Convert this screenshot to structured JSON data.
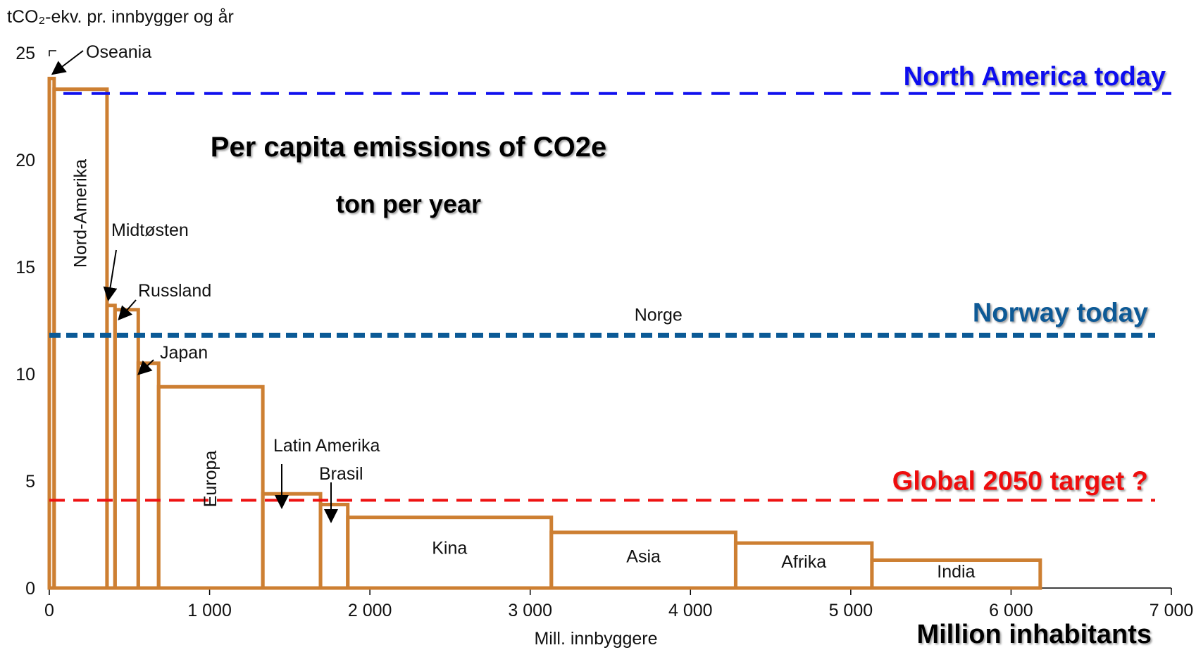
{
  "chart_data": {
    "type": "area",
    "title": "Per capita emissions of CO2e",
    "subtitle": "ton per year",
    "ylabel": "tCO₂-ekv. pr. innbygger og år",
    "xlabel": "Mill. innbyggere",
    "xlabel_en": "Million inhabitants",
    "xlim": [
      0,
      7000
    ],
    "ylim": [
      0,
      25
    ],
    "xticks": [
      0,
      1000,
      2000,
      3000,
      4000,
      5000,
      6000,
      7000
    ],
    "xtick_labels": [
      "0",
      "1 000",
      "2 000",
      "3 000",
      "4 000",
      "5 000",
      "6 000",
      "7 000"
    ],
    "yticks": [
      0,
      5,
      10,
      15,
      20,
      25
    ],
    "ytick_labels": [
      "0",
      "5",
      "10",
      "15",
      "20",
      "25"
    ],
    "grid": false,
    "bar_color": "#cd7f32",
    "regions": [
      {
        "name": "Oseania",
        "population": 30,
        "emissions": 23.8
      },
      {
        "name": "Nord-Amerika",
        "population": 330,
        "emissions": 23.3
      },
      {
        "name": "Midtøsten",
        "population": 50,
        "emissions": 13.2
      },
      {
        "name": "Russland",
        "population": 145,
        "emissions": 13.0
      },
      {
        "name": "Japan",
        "population": 127,
        "emissions": 10.5
      },
      {
        "name": "Europa",
        "population": 650,
        "emissions": 9.4
      },
      {
        "name": "Latin Amerika",
        "population": 360,
        "emissions": 4.4
      },
      {
        "name": "Brasil",
        "population": 170,
        "emissions": 3.9
      },
      {
        "name": "Kina",
        "population": 1270,
        "emissions": 3.3
      },
      {
        "name": "Asia",
        "population": 1150,
        "emissions": 2.6
      },
      {
        "name": "Afrika",
        "population": 850,
        "emissions": 2.1
      },
      {
        "name": "India",
        "population": 1050,
        "emissions": 1.3
      }
    ],
    "reference_lines": [
      {
        "label": "North America today",
        "value": 23.1,
        "color": "#1010ee"
      },
      {
        "label": "Norway today",
        "value": 11.8,
        "color": "#0b5a96",
        "inline_label": "Norge"
      },
      {
        "label": "Global 2050 target ?",
        "value": 4.1,
        "color": "#ee1111"
      }
    ]
  }
}
